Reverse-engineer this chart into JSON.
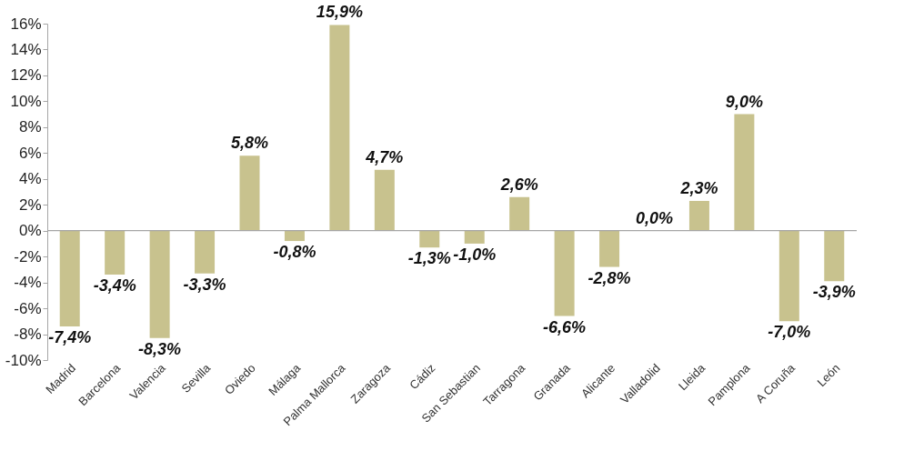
{
  "chart_data": {
    "type": "bar",
    "categories": [
      "Madrid",
      "Barcelona",
      "Valencia",
      "Sevilla",
      "Oviedo",
      "Málaga",
      "Palma Mallorca",
      "Zaragoza",
      "Cádiz",
      "San Sebastian",
      "Tarragona",
      "Granada",
      "Alicante",
      "Valladolid",
      "Lleida",
      "Pamplona",
      "A Coruña",
      "León"
    ],
    "values": [
      -7.4,
      -3.4,
      -8.3,
      -3.3,
      5.8,
      -0.8,
      15.9,
      4.7,
      -1.3,
      -1.0,
      2.6,
      -6.6,
      -2.8,
      0.0,
      2.3,
      9.0,
      -7.0,
      -3.9
    ],
    "value_labels": [
      "-7,4%",
      "-3,4%",
      "-8,3%",
      "-3,3%",
      "5,8%",
      "-0,8%",
      "15,9%",
      "4,7%",
      "-1,3%",
      "-1,0%",
      "2,6%",
      "-6,6%",
      "-2,8%",
      "0,0%",
      "2,3%",
      "9,0%",
      "-7,0%",
      "-3,9%"
    ],
    "color": "#c8c28e",
    "ylim": [
      -10,
      16
    ],
    "yticks": [
      {
        "value": -10,
        "label": "-10%"
      },
      {
        "value": -8,
        "label": "-8%"
      },
      {
        "value": -6,
        "label": "-6%"
      },
      {
        "value": -4,
        "label": "-4%"
      },
      {
        "value": -2,
        "label": "-2%"
      },
      {
        "value": 0,
        "label": "0%"
      },
      {
        "value": 2,
        "label": "2%"
      },
      {
        "value": 4,
        "label": "4%"
      },
      {
        "value": 6,
        "label": "6%"
      },
      {
        "value": 8,
        "label": "8%"
      },
      {
        "value": 10,
        "label": "10%"
      },
      {
        "value": 12,
        "label": "12%"
      },
      {
        "value": 14,
        "label": "14%"
      },
      {
        "value": 16,
        "label": "16%"
      }
    ],
    "ref_lines": [
      {
        "axis": "y",
        "value": 0,
        "color": "#a6a6a6"
      }
    ],
    "grid": false
  }
}
